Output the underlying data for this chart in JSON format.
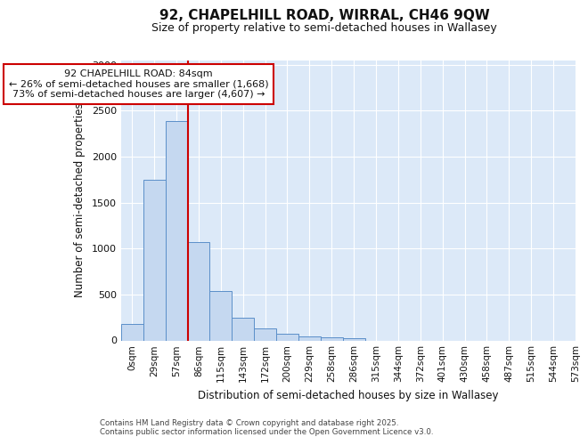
{
  "title_line1": "92, CHAPELHILL ROAD, WIRRAL, CH46 9QW",
  "title_line2": "Size of property relative to semi-detached houses in Wallasey",
  "xlabel": "Distribution of semi-detached houses by size in Wallasey",
  "ylabel": "Number of semi-detached properties",
  "annotation_line1": "92 CHAPELHILL ROAD: 84sqm",
  "annotation_line2": "← 26% of semi-detached houses are smaller (1,668)",
  "annotation_line3": "73% of semi-detached houses are larger (4,607) →",
  "footer_line1": "Contains HM Land Registry data © Crown copyright and database right 2025.",
  "footer_line2": "Contains public sector information licensed under the Open Government Licence v3.0.",
  "bin_labels": [
    "0sqm",
    "29sqm",
    "57sqm",
    "86sqm",
    "115sqm",
    "143sqm",
    "172sqm",
    "200sqm",
    "229sqm",
    "258sqm",
    "286sqm",
    "315sqm",
    "344sqm",
    "372sqm",
    "401sqm",
    "430sqm",
    "458sqm",
    "487sqm",
    "515sqm",
    "544sqm",
    "573sqm"
  ],
  "bar_values": [
    175,
    1750,
    2390,
    1070,
    540,
    245,
    130,
    70,
    40,
    30,
    20,
    0,
    0,
    0,
    0,
    0,
    0,
    0,
    0,
    0
  ],
  "bar_color": "#c5d8f0",
  "bar_edge_color": "#5b8fc9",
  "vline_color": "#cc0000",
  "annotation_box_color": "#cc0000",
  "ylim": [
    0,
    3050
  ],
  "yticks": [
    0,
    500,
    1000,
    1500,
    2000,
    2500,
    3000
  ],
  "background_color": "#dce9f8",
  "grid_color": "#ffffff",
  "fig_background": "#ffffff",
  "vline_bin_index": 2.5
}
